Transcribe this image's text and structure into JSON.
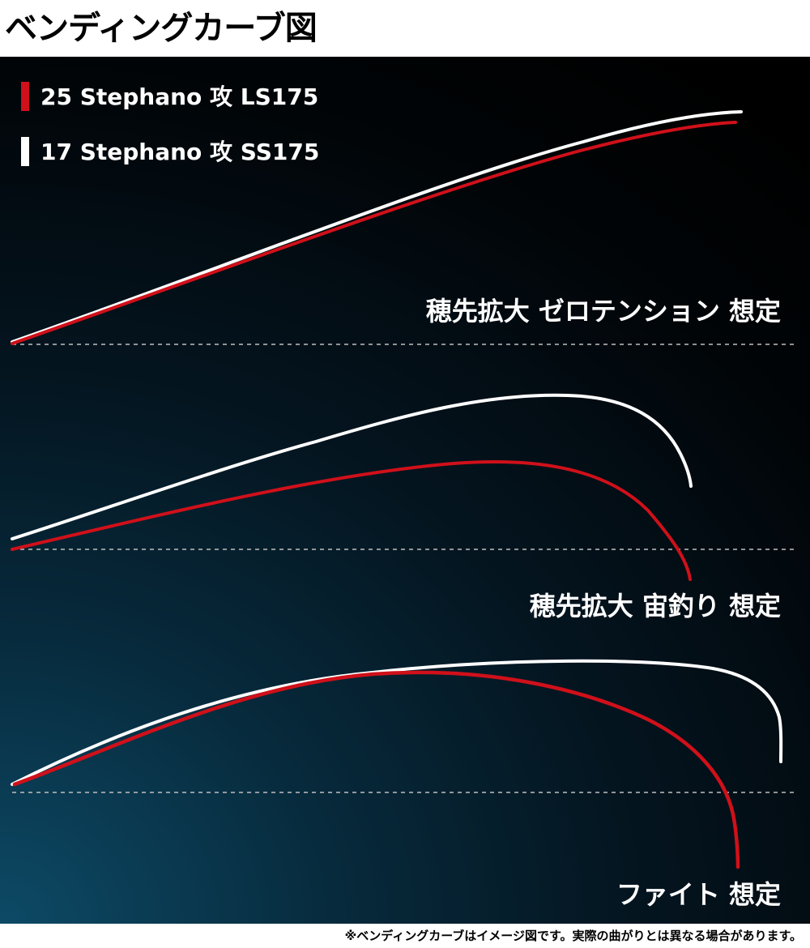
{
  "title": "ベンディングカーブ図",
  "legend": [
    {
      "label": "25 Stephano 攻 LS175",
      "color": "#d0101a"
    },
    {
      "label": "17 Stephano 攻 SS175",
      "color": "#ffffff"
    }
  ],
  "scenarios": [
    {
      "label": "穂先拡大 ゼロテンション 想定"
    },
    {
      "label": "穂先拡大 宙釣り 想定"
    },
    {
      "label": "ファイト 想定"
    }
  ],
  "colors": {
    "red_curve": "#d0101a",
    "white_curve": "#ffffff",
    "background": "#02111b"
  },
  "footnote": "※ベンディングカーブはイメージ図です。実際の曲がりとは異なる場合があります。"
}
